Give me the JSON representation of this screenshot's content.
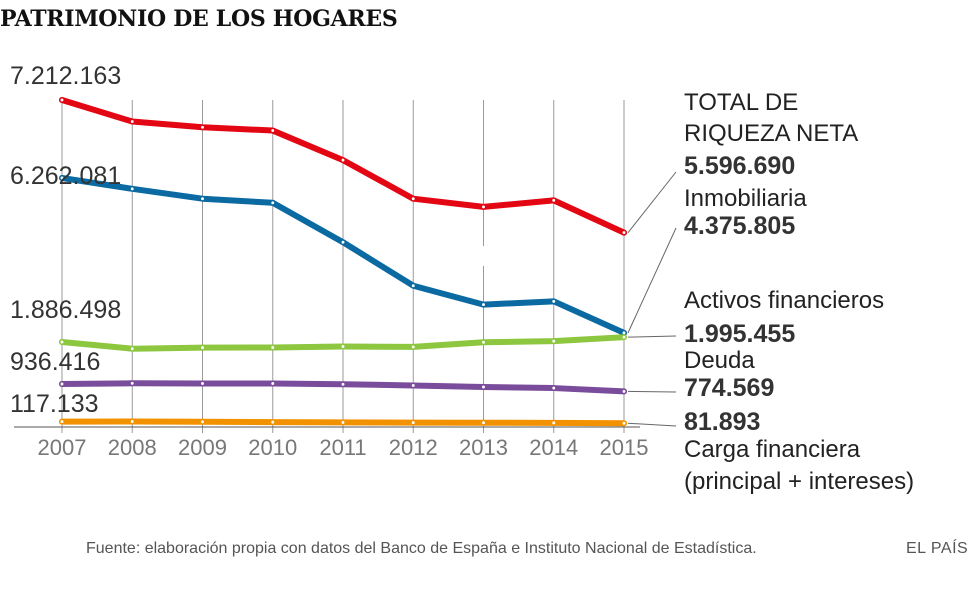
{
  "title": "PATRIMONIO DE LOS HOGARES",
  "footer": {
    "source": "Fuente: elaboración propia con datos del Banco de España e Instituto Nacional de Estadística.",
    "brand": "EL PAÍS"
  },
  "chart_data": {
    "type": "line",
    "title": "PATRIMONIO DE LOS HOGARES",
    "x": [
      "2007",
      "2008",
      "2009",
      "2010",
      "2011",
      "2012",
      "2013",
      "2014",
      "2015"
    ],
    "series": [
      {
        "name": "TOTAL DE RIQUEZA NETA",
        "label_lines": [
          "TOTAL DE",
          "RIQUEZA NETA"
        ],
        "color": "#e30613",
        "start_label": "7.212.163",
        "end_label": "5.596.690",
        "values": [
          7212163,
          6950000,
          6880000,
          6840000,
          6480000,
          6010000,
          5910000,
          5990000,
          5596690
        ]
      },
      {
        "name": "Inmobiliaria",
        "label_lines": [
          "Inmobiliaria"
        ],
        "color": "#0a6aa1",
        "start_label": "6.262.081",
        "end_label": "4.375.805",
        "values": [
          6262081,
          6130000,
          6010000,
          5960000,
          5480000,
          4950000,
          4720000,
          4760000,
          4375805
        ]
      },
      {
        "name": "Activos financieros",
        "label_lines": [
          "Activos financieros"
        ],
        "color": "#8dc63f",
        "start_label": "1.886.498",
        "end_label": "1.995.455",
        "values": [
          1886498,
          1735000,
          1760000,
          1762000,
          1785000,
          1775000,
          1880000,
          1905000,
          1995455
        ]
      },
      {
        "name": "Deuda",
        "label_lines": [
          "Deuda"
        ],
        "color": "#7a4d9c",
        "start_label": "936.416",
        "end_label": "774.569",
        "values": [
          936416,
          952000,
          948000,
          948000,
          930000,
          905000,
          872000,
          848000,
          774569
        ]
      },
      {
        "name": "Carga financiera (principal + intereses)",
        "label_lines": [
          "Carga financiera",
          "(principal + intereses)"
        ],
        "color": "#f39200",
        "start_label": "117.133",
        "end_label": "81.893",
        "values": [
          117133,
          120000,
          113000,
          106000,
          100000,
          96000,
          93000,
          90000,
          81893
        ]
      }
    ],
    "grid": "vertical lines at each year",
    "legend": "labels at right end of each line"
  }
}
